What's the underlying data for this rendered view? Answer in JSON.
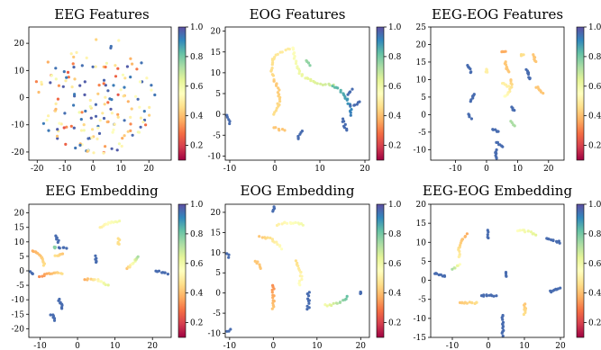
{
  "figure": {
    "colormap_name": "Spectral",
    "colormap_stops": [
      "#9e0142",
      "#d53e4f",
      "#f46d43",
      "#fdae61",
      "#fee08b",
      "#ffffbf",
      "#e6f598",
      "#abdda4",
      "#66c2a5",
      "#3288bd",
      "#5e4fa2"
    ]
  },
  "chart_data": [
    {
      "type": "scatter",
      "title": "EEG Features",
      "xlim": [
        -23,
        28
      ],
      "ylim": [
        -23,
        26
      ],
      "xticks": [
        "-20",
        "-10",
        "0",
        "10",
        "20"
      ],
      "xtick_values": [
        -20,
        -10,
        0,
        10,
        20
      ],
      "yticks": [
        "20",
        "10",
        "0",
        "-10",
        "-20"
      ],
      "ytick_values": [
        20,
        10,
        0,
        -10,
        -20
      ],
      "colorbar": {
        "range": [
          0.1,
          1.0
        ],
        "ticks": [
          "1.0",
          "0.8",
          "0.6",
          "0.4",
          "0.2"
        ],
        "tick_values": [
          1.0,
          0.8,
          0.6,
          0.4,
          0.2
        ]
      },
      "layout": "cloud"
    },
    {
      "type": "scatter",
      "title": "EOG Features",
      "xlim": [
        -11,
        21
      ],
      "ylim": [
        -11,
        21
      ],
      "xticks": [
        "-10",
        "0",
        "10",
        "20"
      ],
      "xtick_values": [
        -10,
        0,
        10,
        20
      ],
      "yticks": [
        "20",
        "15",
        "10",
        "5",
        "0",
        "-5",
        "-10"
      ],
      "ytick_values": [
        20,
        15,
        10,
        5,
        0,
        -5,
        -10
      ],
      "colorbar": {
        "range": [
          0.1,
          1.0
        ],
        "ticks": [
          "1.0",
          "0.8",
          "0.6",
          "0.4",
          "0.2"
        ],
        "tick_values": [
          1.0,
          0.8,
          0.6,
          0.4,
          0.2
        ]
      },
      "segments": [
        {
          "from": [
            0,
            8
          ],
          "to": [
            4,
            16
          ],
          "bend": 1.2,
          "c0": 0.38,
          "c1": 0.45
        },
        {
          "from": [
            4,
            16
          ],
          "to": [
            13,
            7
          ],
          "bend": -1.0,
          "c0": 0.5,
          "c1": 0.65
        },
        {
          "from": [
            13,
            7
          ],
          "to": [
            17,
            0
          ],
          "bend": 0.5,
          "c0": 0.8,
          "c1": 0.92
        },
        {
          "from": [
            0,
            8
          ],
          "to": [
            0,
            0
          ],
          "bend": 0.5,
          "c0": 0.35,
          "c1": 0.4
        },
        {
          "from": [
            7,
            13
          ],
          "to": [
            8,
            12
          ],
          "bend": 0,
          "c0": 0.72,
          "c1": 0.75
        },
        {
          "from": [
            -11,
            0
          ],
          "to": [
            -10,
            -2
          ],
          "bend": 0,
          "c0": 0.95,
          "c1": 0.95
        },
        {
          "from": [
            0,
            -3
          ],
          "to": [
            2,
            -4
          ],
          "bend": 0,
          "c0": 0.35,
          "c1": 0.35
        },
        {
          "from": [
            5,
            -6
          ],
          "to": [
            6,
            -4
          ],
          "bend": 0,
          "c0": 0.95,
          "c1": 0.95
        },
        {
          "from": [
            15,
            -1
          ],
          "to": [
            16,
            -4
          ],
          "bend": 0,
          "c0": 0.95,
          "c1": 0.95
        },
        {
          "from": [
            17,
            2
          ],
          "to": [
            19,
            3
          ],
          "bend": 0,
          "c0": 0.95,
          "c1": 0.95
        },
        {
          "from": [
            16,
            5
          ],
          "to": [
            17,
            6
          ],
          "bend": 0,
          "c0": 0.95,
          "c1": 0.95
        }
      ]
    },
    {
      "type": "scatter",
      "title": "EEG-EOG Features",
      "xlim": [
        -18,
        25
      ],
      "ylim": [
        -13,
        25
      ],
      "xticks": [
        "-10",
        "0",
        "10",
        "20"
      ],
      "xtick_values": [
        -10,
        0,
        10,
        20
      ],
      "yticks": [
        "25",
        "20",
        "15",
        "10",
        "5",
        "0",
        "-5",
        "-10"
      ],
      "ytick_values": [
        25,
        20,
        15,
        10,
        5,
        0,
        -5,
        -10
      ],
      "colorbar": {
        "range": [
          0.1,
          1.0
        ],
        "ticks": [
          "1.0",
          "0.8",
          "0.6",
          "0.4",
          "0.2"
        ],
        "tick_values": [
          1.0,
          0.8,
          0.6,
          0.4,
          0.2
        ]
      },
      "segments": [
        {
          "from": [
            -6,
            14
          ],
          "to": [
            -5,
            12
          ],
          "bend": 0,
          "c0": 0.95,
          "c1": 0.95
        },
        {
          "from": [
            -4,
            6
          ],
          "to": [
            -5,
            4
          ],
          "bend": 0,
          "c0": 0.95,
          "c1": 0.95
        },
        {
          "from": [
            -6,
            0
          ],
          "to": [
            -5,
            -1
          ],
          "bend": 0,
          "c0": 0.95,
          "c1": 0.95
        },
        {
          "from": [
            0,
            13
          ],
          "to": [
            0,
            12
          ],
          "bend": 0,
          "c0": 0.45,
          "c1": 0.45
        },
        {
          "from": [
            6,
            15
          ],
          "to": [
            7,
            12
          ],
          "bend": 0,
          "c0": 0.35,
          "c1": 0.35
        },
        {
          "from": [
            5,
            9
          ],
          "to": [
            7,
            8
          ],
          "bend": 0,
          "c0": 0.45,
          "c1": 0.45
        },
        {
          "from": [
            8,
            10
          ],
          "to": [
            6,
            5
          ],
          "bend": 0.6,
          "c0": 0.35,
          "c1": 0.5
        },
        {
          "from": [
            13,
            13
          ],
          "to": [
            14,
            10
          ],
          "bend": 0,
          "c0": 0.95,
          "c1": 0.95
        },
        {
          "from": [
            15,
            17
          ],
          "to": [
            16,
            15
          ],
          "bend": 0,
          "c0": 0.35,
          "c1": 0.35
        },
        {
          "from": [
            16,
            8
          ],
          "to": [
            18,
            6
          ],
          "bend": 0,
          "c0": 0.35,
          "c1": 0.35
        },
        {
          "from": [
            8,
            2
          ],
          "to": [
            9,
            1
          ],
          "bend": 0,
          "c0": 0.95,
          "c1": 0.95
        },
        {
          "from": [
            8,
            -2
          ],
          "to": [
            9,
            -3
          ],
          "bend": 0,
          "c0": 0.7,
          "c1": 0.7
        },
        {
          "from": [
            2,
            -4
          ],
          "to": [
            4,
            -5
          ],
          "bend": 0,
          "c0": 0.95,
          "c1": 0.95
        },
        {
          "from": [
            3,
            -8
          ],
          "to": [
            5,
            -9
          ],
          "bend": 0,
          "c0": 0.95,
          "c1": 0.95
        },
        {
          "from": [
            3,
            -10
          ],
          "to": [
            3,
            -13
          ],
          "bend": 0,
          "c0": 0.95,
          "c1": 0.95
        },
        {
          "from": [
            5,
            18
          ],
          "to": [
            6,
            18
          ],
          "bend": 0,
          "c0": 0.3,
          "c1": 0.3
        },
        {
          "from": [
            11,
            17
          ],
          "to": [
            12,
            17
          ],
          "bend": 0,
          "c0": 0.4,
          "c1": 0.4
        }
      ]
    },
    {
      "type": "scatter",
      "title": "EEG Embedding",
      "xlim": [
        -13,
        25
      ],
      "ylim": [
        -23,
        23
      ],
      "xticks": [
        "-10",
        "0",
        "10",
        "20"
      ],
      "xtick_values": [
        -10,
        0,
        10,
        20
      ],
      "yticks": [
        "20",
        "15",
        "10",
        "5",
        "0",
        "-5",
        "-10",
        "-15",
        "-20"
      ],
      "ytick_values": [
        20,
        15,
        10,
        5,
        0,
        -5,
        -10,
        -15,
        -20
      ],
      "colorbar": {
        "range": [
          0.1,
          1.0
        ],
        "ticks": [
          "1.0",
          "0.8",
          "0.6",
          "0.4",
          "0.2"
        ],
        "tick_values": [
          1.0,
          0.8,
          0.6,
          0.4,
          0.2
        ]
      },
      "segments": [
        {
          "from": [
            -12,
            7
          ],
          "to": [
            -9,
            2
          ],
          "bend": 0.6,
          "c0": 0.3,
          "c1": 0.4
        },
        {
          "from": [
            -10,
            -2
          ],
          "to": [
            -4,
            -1
          ],
          "bend": 0.4,
          "c0": 0.25,
          "c1": 0.4
        },
        {
          "from": [
            -13,
            0
          ],
          "to": [
            -12,
            -1
          ],
          "bend": 0,
          "c0": 0.95,
          "c1": 0.95
        },
        {
          "from": [
            -6,
            12
          ],
          "to": [
            -5,
            10
          ],
          "bend": 0,
          "c0": 0.95,
          "c1": 0.95
        },
        {
          "from": [
            -5,
            8
          ],
          "to": [
            -3,
            8
          ],
          "bend": 0,
          "c0": 0.95,
          "c1": 0.95
        },
        {
          "from": [
            -4,
            6
          ],
          "to": [
            -6,
            5
          ],
          "bend": 0,
          "c0": 0.35,
          "c1": 0.4
        },
        {
          "from": [
            -6,
            8
          ],
          "to": [
            -6,
            8
          ],
          "bend": 0,
          "c0": 0.75,
          "c1": 0.75
        },
        {
          "from": [
            6,
            15
          ],
          "to": [
            11,
            17
          ],
          "bend": 0.4,
          "c0": 0.45,
          "c1": 0.55
        },
        {
          "from": [
            11,
            11
          ],
          "to": [
            11,
            9
          ],
          "bend": 0,
          "c0": 0.4,
          "c1": 0.4
        },
        {
          "from": [
            5,
            5
          ],
          "to": [
            5,
            3
          ],
          "bend": 0,
          "c0": 0.95,
          "c1": 0.95
        },
        {
          "from": [
            2,
            -3
          ],
          "to": [
            8,
            -5
          ],
          "bend": 0.5,
          "c0": 0.3,
          "c1": 0.6
        },
        {
          "from": [
            13,
            1
          ],
          "to": [
            16,
            5
          ],
          "bend": -0.5,
          "c0": 0.35,
          "c1": 0.7
        },
        {
          "from": [
            21,
            0
          ],
          "to": [
            24,
            -1
          ],
          "bend": 0,
          "c0": 0.95,
          "c1": 0.95
        },
        {
          "from": [
            -5,
            -10
          ],
          "to": [
            -4,
            -13
          ],
          "bend": 0,
          "c0": 0.95,
          "c1": 0.95
        },
        {
          "from": [
            -7,
            -15
          ],
          "to": [
            -6,
            -17
          ],
          "bend": 0,
          "c0": 0.95,
          "c1": 0.95
        }
      ]
    },
    {
      "type": "scatter",
      "title": "EOG Embedding",
      "xlim": [
        -11,
        22
      ],
      "ylim": [
        -11,
        22
      ],
      "xticks": [
        "-10",
        "0",
        "10",
        "20"
      ],
      "xtick_values": [
        -10,
        0,
        10,
        20
      ],
      "yticks": [
        "20",
        "15",
        "10",
        "5",
        "0",
        "-5",
        "-10"
      ],
      "ytick_values": [
        20,
        15,
        10,
        5,
        0,
        -5,
        -10
      ],
      "colorbar": {
        "range": [
          0.1,
          1.0
        ],
        "ticks": [
          "1.0",
          "0.8",
          "0.6",
          "0.4",
          "0.2"
        ],
        "tick_values": [
          1.0,
          0.8,
          0.6,
          0.4,
          0.2
        ]
      },
      "segments": [
        {
          "from": [
            0,
            22
          ],
          "to": [
            0,
            20
          ],
          "bend": 0,
          "c0": 0.95,
          "c1": 0.95
        },
        {
          "from": [
            1,
            17
          ],
          "to": [
            7,
            17
          ],
          "bend": 0.3,
          "c0": 0.45,
          "c1": 0.55
        },
        {
          "from": [
            -3,
            14
          ],
          "to": [
            2,
            11
          ],
          "bend": 0.5,
          "c0": 0.35,
          "c1": 0.5
        },
        {
          "from": [
            -11,
            10
          ],
          "to": [
            -10,
            9
          ],
          "bend": 0,
          "c0": 0.95,
          "c1": 0.95
        },
        {
          "from": [
            -4,
            8
          ],
          "to": [
            -3,
            6
          ],
          "bend": 0,
          "c0": 0.35,
          "c1": 0.35
        },
        {
          "from": [
            5,
            8
          ],
          "to": [
            6,
            2
          ],
          "bend": 0.5,
          "c0": 0.4,
          "c1": 0.5
        },
        {
          "from": [
            0,
            2
          ],
          "to": [
            0,
            -4
          ],
          "bend": 0,
          "c0": 0.25,
          "c1": 0.35
        },
        {
          "from": [
            8,
            0
          ],
          "to": [
            8,
            -4
          ],
          "bend": 0,
          "c0": 0.95,
          "c1": 0.95
        },
        {
          "from": [
            12,
            -3
          ],
          "to": [
            17,
            -1
          ],
          "bend": -0.4,
          "c0": 0.55,
          "c1": 0.8
        },
        {
          "from": [
            20,
            0
          ],
          "to": [
            20,
            0
          ],
          "bend": 0,
          "c0": 0.95,
          "c1": 0.95
        },
        {
          "from": [
            -10,
            -9
          ],
          "to": [
            -11,
            -10
          ],
          "bend": 0,
          "c0": 0.95,
          "c1": 0.95
        }
      ]
    },
    {
      "type": "scatter",
      "title": "EEG-EOG Embedding",
      "xlim": [
        -16,
        21
      ],
      "ylim": [
        -15,
        20
      ],
      "xticks": [
        "-10",
        "0",
        "10",
        "20"
      ],
      "xtick_values": [
        -10,
        0,
        10,
        20
      ],
      "yticks": [
        "20",
        "15",
        "10",
        "5",
        "0",
        "-5",
        "-10",
        "-15"
      ],
      "ytick_values": [
        20,
        15,
        10,
        5,
        0,
        -5,
        -10,
        -15
      ],
      "colorbar": {
        "range": [
          0.1,
          1.0
        ],
        "ticks": [
          "1.0",
          "0.8",
          "0.6",
          "0.4",
          "0.2"
        ],
        "tick_values": [
          1.0,
          0.8,
          0.6,
          0.4,
          0.2
        ]
      },
      "segments": [
        {
          "from": [
            -6,
            12
          ],
          "to": [
            -8,
            6
          ],
          "bend": -0.6,
          "c0": 0.3,
          "c1": 0.45
        },
        {
          "from": [
            -8,
            4
          ],
          "to": [
            -10,
            3
          ],
          "bend": 0,
          "c0": 0.5,
          "c1": 0.7
        },
        {
          "from": [
            0,
            13
          ],
          "to": [
            0,
            11
          ],
          "bend": 0,
          "c0": 0.95,
          "c1": 0.95
        },
        {
          "from": [
            8,
            13
          ],
          "to": [
            13,
            12
          ],
          "bend": 0.3,
          "c0": 0.5,
          "c1": 0.6
        },
        {
          "from": [
            16,
            11
          ],
          "to": [
            20,
            10
          ],
          "bend": 0,
          "c0": 0.95,
          "c1": 0.95
        },
        {
          "from": [
            -15,
            2
          ],
          "to": [
            -12,
            1
          ],
          "bend": 0,
          "c0": 0.95,
          "c1": 0.95
        },
        {
          "from": [
            -8,
            -6
          ],
          "to": [
            -3,
            -6
          ],
          "bend": 0,
          "c0": 0.35,
          "c1": 0.4
        },
        {
          "from": [
            -2,
            -4
          ],
          "to": [
            2,
            -4
          ],
          "bend": 0,
          "c0": 0.95,
          "c1": 0.95
        },
        {
          "from": [
            4,
            -9
          ],
          "to": [
            4,
            -15
          ],
          "bend": 0,
          "c0": 0.95,
          "c1": 0.95
        },
        {
          "from": [
            10,
            -6
          ],
          "to": [
            10,
            -9
          ],
          "bend": 0.3,
          "c0": 0.35,
          "c1": 0.4
        },
        {
          "from": [
            17,
            -3
          ],
          "to": [
            20,
            -2
          ],
          "bend": 0,
          "c0": 0.95,
          "c1": 0.95
        },
        {
          "from": [
            5,
            2
          ],
          "to": [
            5,
            1
          ],
          "bend": 0,
          "c0": 0.95,
          "c1": 0.95
        }
      ]
    }
  ]
}
